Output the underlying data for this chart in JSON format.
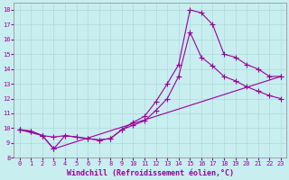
{
  "xlabel": "Windchill (Refroidissement éolien,°C)",
  "background_color": "#c8eef0",
  "line_color": "#990099",
  "grid_color": "#b0d8da",
  "xlim": [
    -0.5,
    23.5
  ],
  "ylim": [
    8,
    18.5
  ],
  "xticks": [
    0,
    1,
    2,
    3,
    4,
    5,
    6,
    7,
    8,
    9,
    10,
    11,
    12,
    13,
    14,
    15,
    16,
    17,
    18,
    19,
    20,
    21,
    22,
    23
  ],
  "yticks": [
    8,
    9,
    10,
    11,
    12,
    13,
    14,
    15,
    16,
    17,
    18
  ],
  "line1_x": [
    0,
    1,
    2,
    3,
    4,
    5,
    6,
    7,
    8,
    9,
    10,
    11,
    12,
    13,
    14,
    15,
    16,
    17,
    18,
    19,
    20,
    21,
    22,
    23
  ],
  "line1_y": [
    9.9,
    9.8,
    9.5,
    8.6,
    9.5,
    9.4,
    9.3,
    9.2,
    9.3,
    9.9,
    10.4,
    10.8,
    11.8,
    13.0,
    14.3,
    18.0,
    17.8,
    17.0,
    15.0,
    14.8,
    14.3,
    14.0,
    13.5,
    13.5
  ],
  "line2_x": [
    0,
    1,
    2,
    3,
    4,
    5,
    6,
    7,
    8,
    9,
    10,
    11,
    12,
    13,
    14,
    15,
    16,
    17,
    18,
    19,
    20,
    21,
    22,
    23
  ],
  "line2_y": [
    9.9,
    9.8,
    9.5,
    9.4,
    9.5,
    9.4,
    9.3,
    9.2,
    9.3,
    9.9,
    10.2,
    10.5,
    11.2,
    12.0,
    13.5,
    16.5,
    14.8,
    14.2,
    13.5,
    13.2,
    12.8,
    12.5,
    12.2,
    12.0
  ],
  "line3_x": [
    0,
    2,
    3,
    23
  ],
  "line3_y": [
    9.9,
    9.5,
    8.6,
    13.5
  ],
  "marker_size": 2.5,
  "linewidth": 0.8,
  "tick_fontsize": 5.0,
  "label_fontsize": 6.0
}
